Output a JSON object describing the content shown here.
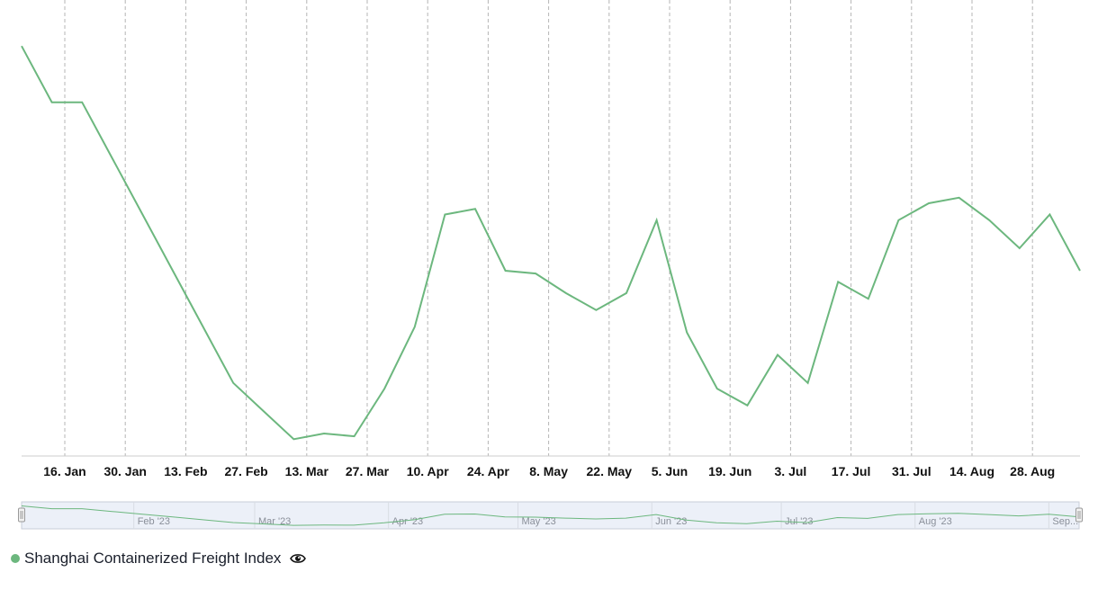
{
  "chart_data": {
    "type": "line",
    "title": "",
    "xlabel": "",
    "ylabel": "",
    "x": [
      "2023-01-06",
      "2023-01-13",
      "2023-01-20",
      "2023-01-27",
      "2023-02-03",
      "2023-02-10",
      "2023-02-17",
      "2023-02-24",
      "2023-03-03",
      "2023-03-10",
      "2023-03-17",
      "2023-03-24",
      "2023-03-31",
      "2023-04-07",
      "2023-04-14",
      "2023-04-21",
      "2023-04-28",
      "2023-05-05",
      "2023-05-12",
      "2023-05-19",
      "2023-05-26",
      "2023-06-02",
      "2023-06-09",
      "2023-06-16",
      "2023-06-23",
      "2023-06-30",
      "2023-07-07",
      "2023-07-14",
      "2023-07-21",
      "2023-07-28",
      "2023-08-04",
      "2023-08-11",
      "2023-08-18",
      "2023-08-25",
      "2023-09-01",
      "2023-09-08"
    ],
    "series": [
      {
        "name": "Shanghai Containerized Freight Index",
        "color": "#6cb77e",
        "values": [
          1030,
          1029,
          1029,
          1028,
          1027,
          1026,
          1025,
          1024,
          1023.5,
          1023,
          1023.1,
          1023.05,
          1023.9,
          1025,
          1027,
          1027.1,
          1026,
          1025.95,
          1025.6,
          1025.3,
          1025.6,
          1026.9,
          1024.9,
          1023.9,
          1023.6,
          1024.5,
          1024,
          1025.8,
          1025.5,
          1026.9,
          1027.2,
          1027.3,
          1026.9,
          1026.4,
          1027,
          1026
        ]
      }
    ],
    "ylim": [
      1022.7,
      1030.5
    ],
    "x_ticks": [
      {
        "date": "2023-01-16",
        "label": "16. Jan"
      },
      {
        "date": "2023-01-30",
        "label": "30. Jan"
      },
      {
        "date": "2023-02-13",
        "label": "13. Feb"
      },
      {
        "date": "2023-02-27",
        "label": "27. Feb"
      },
      {
        "date": "2023-03-13",
        "label": "13. Mar"
      },
      {
        "date": "2023-03-27",
        "label": "27. Mar"
      },
      {
        "date": "2023-04-10",
        "label": "10. Apr"
      },
      {
        "date": "2023-04-24",
        "label": "24. Apr"
      },
      {
        "date": "2023-05-08",
        "label": "8. May"
      },
      {
        "date": "2023-05-22",
        "label": "22. May"
      },
      {
        "date": "2023-06-05",
        "label": "5. Jun"
      },
      {
        "date": "2023-06-19",
        "label": "19. Jun"
      },
      {
        "date": "2023-07-03",
        "label": "3. Jul"
      },
      {
        "date": "2023-07-17",
        "label": "17. Jul"
      },
      {
        "date": "2023-07-31",
        "label": "31. Jul"
      },
      {
        "date": "2023-08-14",
        "label": "14. Aug"
      },
      {
        "date": "2023-08-28",
        "label": "28. Aug"
      }
    ],
    "grid": "vertical-dashed",
    "legend_position": "bottom-left",
    "navigator": {
      "labels": [
        {
          "date": "2023-02-01",
          "label": "Feb '23"
        },
        {
          "date": "2023-03-01",
          "label": "Mar '23"
        },
        {
          "date": "2023-04-01",
          "label": "Apr '23"
        },
        {
          "date": "2023-05-01",
          "label": "May '23"
        },
        {
          "date": "2023-06-01",
          "label": "Jun '23"
        },
        {
          "date": "2023-07-01",
          "label": "Jul '23"
        },
        {
          "date": "2023-08-01",
          "label": "Aug '23"
        },
        {
          "date": "2023-09-01",
          "label": "Sep..."
        }
      ]
    }
  },
  "legend": {
    "label": "Shanghai Containerized Freight Index",
    "icon": "eye-icon"
  }
}
